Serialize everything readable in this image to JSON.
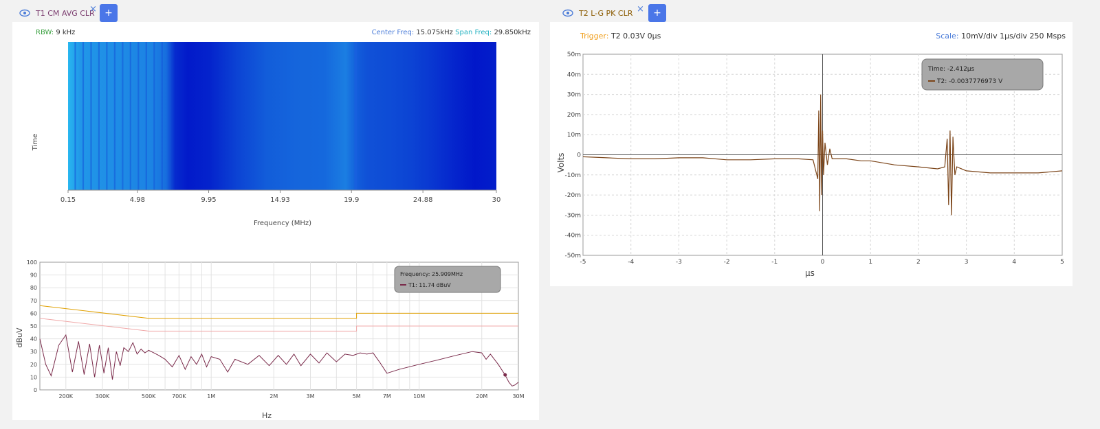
{
  "left_tab": {
    "label": "T1 CM AVG CLR",
    "close": "×",
    "add": "+"
  },
  "right_tab": {
    "label": "T2 L-G PK CLR",
    "close": "×",
    "add": "+"
  },
  "spectrogram": {
    "rbw_label": "RBW:",
    "rbw_value": "9 kHz",
    "center_label": "Center Freq:",
    "center_value": "15.075kHz",
    "span_label": "Span Freq:",
    "span_value": "29.850kHz",
    "ylabel": "Time",
    "colors": {
      "light": "#29b8f0",
      "dark": "#0012c8"
    }
  },
  "chart_data": [
    {
      "type": "heatmap",
      "xlabel": "Frequency (MHz)",
      "ylabel": "Time",
      "xlim": [
        0.15,
        30
      ],
      "x_ticks": [
        "0.15",
        "4.98",
        "9.95",
        "14.93",
        "19.9",
        "24.88",
        "30"
      ],
      "column_profile": {
        "freq_mhz": [
          0.15,
          0.3,
          1.0,
          2.0,
          3.0,
          4.0,
          5.0,
          6.0,
          7.0,
          7.6,
          8.5,
          10.0,
          12.0,
          14.0,
          16.0,
          18.0,
          19.5,
          20.3,
          21.0,
          22.5,
          24.0,
          25.5,
          27.0,
          28.5,
          30.0
        ],
        "intensity": [
          0.0,
          0.05,
          0.2,
          0.22,
          0.25,
          0.28,
          0.3,
          0.32,
          0.45,
          0.85,
          0.95,
          0.9,
          0.7,
          0.55,
          0.5,
          0.48,
          0.35,
          0.55,
          0.62,
          0.65,
          0.7,
          0.78,
          0.88,
          0.97,
          0.93
        ]
      }
    },
    {
      "type": "line",
      "xlabel": "Hz",
      "ylabel": "dBuV",
      "x_scale": "log",
      "xlim": [
        150000,
        30000000
      ],
      "ylim": [
        0,
        100
      ],
      "x_ticks": [
        "200K",
        "300K",
        "500K",
        "700K",
        "1M",
        "2M",
        "3M",
        "5M",
        "7M",
        "10M",
        "20M",
        "30M"
      ],
      "y_ticks": [
        "0",
        "10",
        "20",
        "30",
        "40",
        "50",
        "60",
        "70",
        "80",
        "90",
        "100"
      ],
      "tooltip": {
        "frequency": "Frequency: 25.909MHz",
        "value": "T1: 11.74 dBuV"
      },
      "limit_lines": [
        {
          "x": [
            150000,
            500000,
            500000,
            5000000,
            5000000,
            30000000
          ],
          "y": [
            66,
            56,
            56,
            56,
            60,
            60
          ],
          "color": "#e0a000"
        },
        {
          "x": [
            150000,
            500000,
            500000,
            5000000,
            5000000,
            30000000
          ],
          "y": [
            56,
            46,
            46,
            46,
            50,
            50
          ],
          "color": "#f0a8a8"
        }
      ],
      "series": [
        {
          "color": "#7a2a4a",
          "x": [
            150000,
            160000,
            170000,
            185000,
            200000,
            215000,
            230000,
            245000,
            260000,
            275000,
            290000,
            305000,
            320000,
            335000,
            350000,
            365000,
            380000,
            400000,
            420000,
            440000,
            460000,
            480000,
            500000,
            530000,
            560000,
            600000,
            650000,
            700000,
            750000,
            800000,
            850000,
            900000,
            950000,
            1000000,
            1100000,
            1200000,
            1300000,
            1500000,
            1700000,
            1900000,
            2100000,
            2300000,
            2500000,
            2700000,
            3000000,
            3300000,
            3600000,
            4000000,
            4400000,
            4800000,
            5200000,
            5600000,
            6000000,
            6500000,
            7000000,
            8000000,
            10000000,
            12000000,
            15000000,
            18000000,
            20000000,
            21000000,
            22000000,
            24000000,
            25909000,
            27000000,
            28000000,
            29000000,
            30000000
          ],
          "y": [
            40,
            20,
            11,
            35,
            43,
            14,
            38,
            12,
            36,
            10,
            35,
            13,
            33,
            8,
            30,
            19,
            33,
            30,
            37,
            28,
            32,
            29,
            31,
            29,
            27,
            24,
            18,
            27,
            16,
            26,
            20,
            28,
            18,
            26,
            24,
            14,
            24,
            20,
            27,
            19,
            27,
            20,
            28,
            19,
            28,
            21,
            29,
            22,
            28,
            27,
            29,
            28,
            29,
            21,
            13,
            16,
            20,
            23,
            27,
            30,
            29,
            24,
            28,
            20,
            11.74,
            6,
            3,
            4,
            6
          ]
        }
      ]
    },
    {
      "type": "line",
      "xlabel": "µs",
      "ylabel": "Volts",
      "xlim": [
        -5,
        5
      ],
      "ylim": [
        -50,
        50
      ],
      "x_ticks": [
        "-5",
        "-4",
        "-3",
        "-2",
        "-1",
        "0",
        "1",
        "2",
        "3",
        "4",
        "5"
      ],
      "y_ticks": [
        "-50m",
        "-40m",
        "-30m",
        "-20m",
        "-10m",
        "0",
        "10m",
        "20m",
        "30m",
        "40m",
        "50m"
      ],
      "trigger": {
        "label": "Trigger:",
        "value": "T2 0.03V 0µs"
      },
      "scale": {
        "label": "Scale:",
        "value": "10mV/div 1µs/div 250 Msps"
      },
      "tooltip": {
        "time": "Time: -2.412µs",
        "value": "T2: -0.0037776973 V"
      },
      "series": [
        {
          "name": "T2",
          "color": "#7b4418",
          "x": [
            -5.0,
            -4.5,
            -4.0,
            -3.5,
            -3.0,
            -2.5,
            -2.0,
            -1.5,
            -1.0,
            -0.5,
            -0.2,
            -0.1,
            -0.08,
            -0.06,
            -0.04,
            -0.02,
            0.0,
            0.02,
            0.05,
            0.1,
            0.15,
            0.2,
            0.3,
            0.5,
            0.8,
            1.0,
            1.5,
            2.0,
            2.4,
            2.55,
            2.6,
            2.63,
            2.66,
            2.69,
            2.72,
            2.76,
            2.8,
            3.0,
            3.5,
            4.0,
            4.5,
            5.0
          ],
          "y": [
            -1,
            -1.5,
            -2,
            -2,
            -1.5,
            -1.5,
            -2.5,
            -2.5,
            -2,
            -2,
            -2.5,
            -12,
            22,
            -28,
            30,
            -20,
            12,
            -10,
            6,
            -5,
            3,
            -2,
            -2,
            -2,
            -3,
            -3,
            -5,
            -6,
            -7,
            -6,
            8,
            -25,
            12,
            -30,
            9,
            -10,
            -6,
            -8,
            -9,
            -9,
            -9,
            -8
          ]
        }
      ]
    }
  ]
}
